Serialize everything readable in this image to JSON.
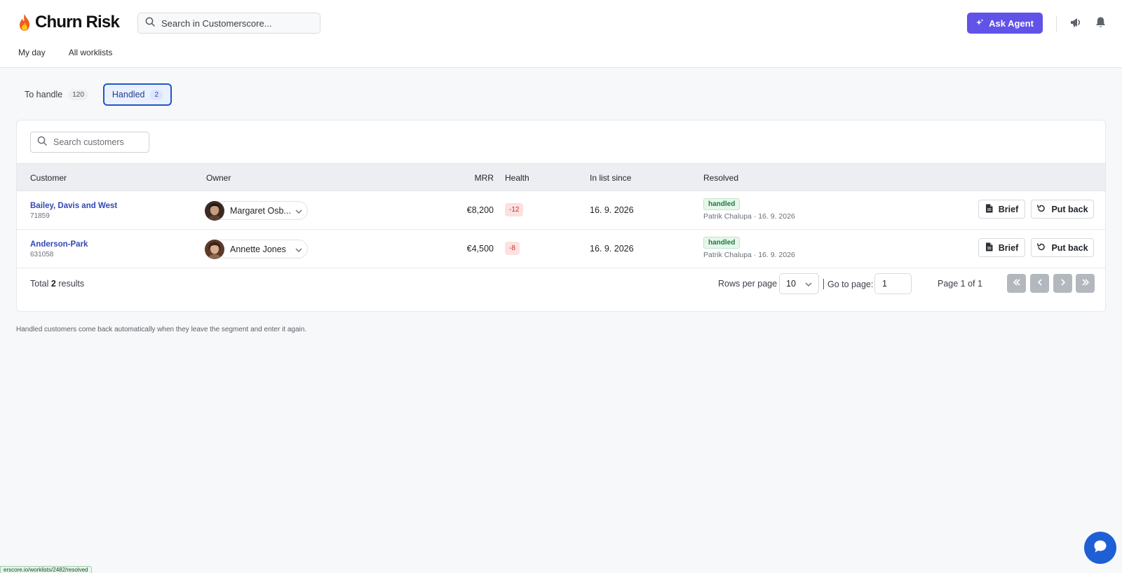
{
  "app": {
    "title": "Churn Risk"
  },
  "header": {
    "search_placeholder": "Search in Customerscore...",
    "ask_agent_label": "Ask Agent",
    "nav": [
      "My day",
      "All worklists"
    ]
  },
  "segments": [
    {
      "label": "To handle",
      "count": "120",
      "active": false
    },
    {
      "label": "Handled",
      "count": "2",
      "active": true
    }
  ],
  "table": {
    "search_placeholder": "Search customers",
    "columns": [
      "Customer",
      "Owner",
      "MRR",
      "Health",
      "In list since",
      "Resolved"
    ],
    "rows": [
      {
        "customer": "Bailey, Davis and West",
        "id": "71859",
        "owner": "Margaret Osb...",
        "mrr": "€8,200",
        "health": "-12",
        "since": "16. 9. 2026",
        "resolved_badge": "handled",
        "resolved_by": "Patrik Chalupa · 16. 9. 2026",
        "brief_label": "Brief",
        "putback_label": "Put back"
      },
      {
        "customer": "Anderson-Park",
        "id": "631058",
        "owner": "Annette Jones",
        "mrr": "€4,500",
        "health": "-8",
        "since": "16. 9. 2026",
        "resolved_badge": "handled",
        "resolved_by": "Patrik Chalupa · 16. 9. 2026",
        "brief_label": "Brief",
        "putback_label": "Put back"
      }
    ]
  },
  "footer": {
    "total_prefix": "Total",
    "total_count": "2",
    "total_suffix": "results",
    "rows_per_page_label": "Rows per page",
    "rows_per_page_value": "10",
    "go_to_page_label": "Go to page:",
    "go_to_page_value": "1",
    "page_of": "Page 1 of 1"
  },
  "hint": "Handled customers come back automatically when they leave the segment and enter it again.",
  "status_url": "erscore.io/worklists/2482/resolved",
  "colors": {
    "accent": "#6152e8",
    "link": "#3148b8",
    "active_tab_border": "#1f57c9",
    "health_bg": "#fde0e0",
    "handled_bg": "#e7f7ec",
    "chat": "#1e5fd6"
  },
  "icons": {
    "logo": "flame-icon",
    "search": "search-icon",
    "agent": "sparkle-icon",
    "announcements": "megaphone-icon",
    "notifications": "bell-icon",
    "brief": "document-icon",
    "put_back": "undo-icon",
    "chat": "chat-icon"
  }
}
